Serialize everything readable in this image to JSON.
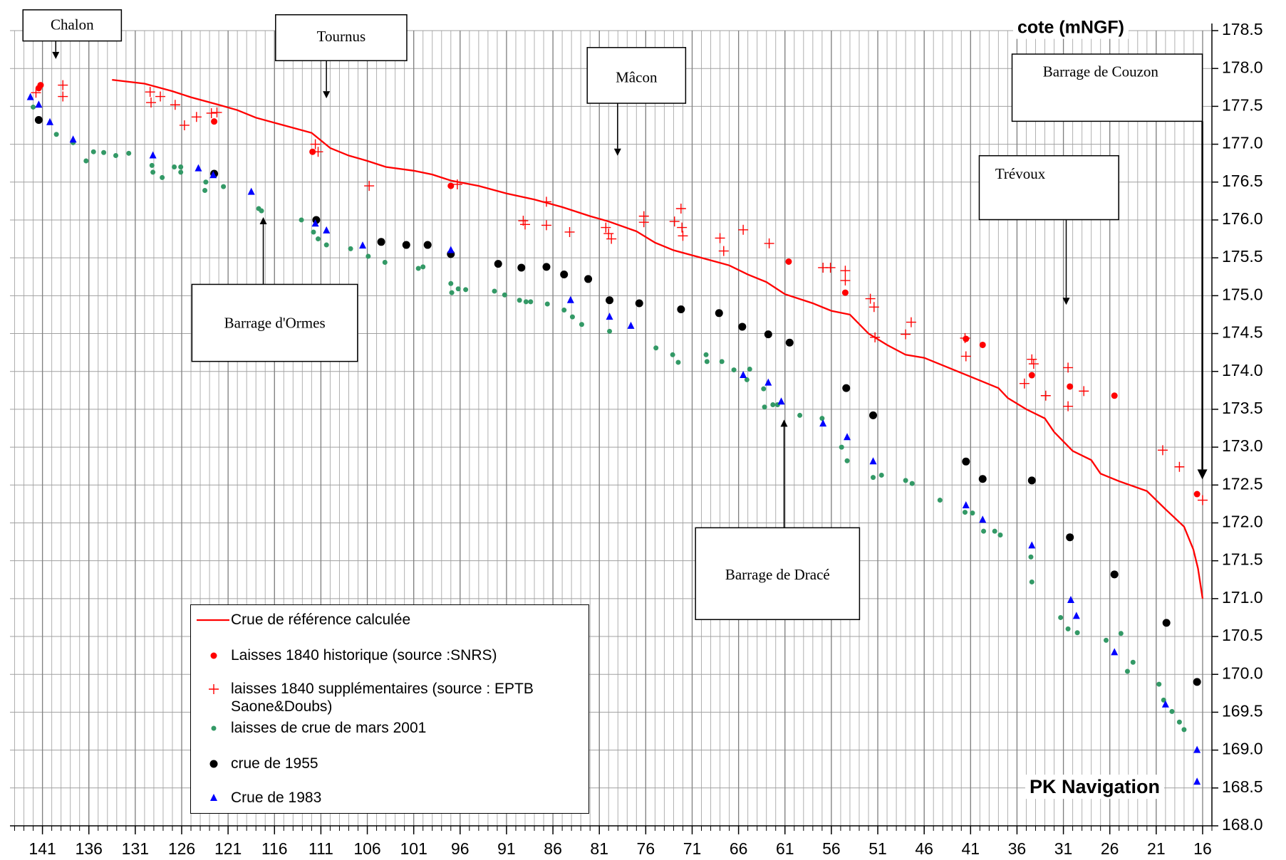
{
  "chart_data": {
    "type": "scatter",
    "y_axis_label": "cote (mNGF)",
    "x_axis_label": "PK Navigation",
    "xlim": [
      144.5,
      15
    ],
    "xticks": [
      141,
      136,
      131,
      126,
      121,
      116,
      111,
      106,
      101,
      96,
      91,
      86,
      81,
      76,
      71,
      66,
      61,
      56,
      51,
      46,
      41,
      36,
      31,
      26,
      21,
      16
    ],
    "x_minor_step": 1,
    "ylim": [
      168,
      178.5
    ],
    "yticks": [
      {
        "value": 168,
        "label": "168.0"
      },
      168.5,
      {
        "value": 169,
        "label": "169.0"
      },
      169.5,
      {
        "value": 170,
        "label": "170.0"
      },
      170.5,
      {
        "value": 171,
        "label": "171.0"
      },
      171.5,
      {
        "value": 172,
        "label": "172.0"
      },
      172.5,
      {
        "value": 173,
        "label": "173.0"
      },
      173.5,
      {
        "value": 174,
        "label": "174.0"
      },
      174.5,
      {
        "value": 175,
        "label": "175.0"
      },
      175.5,
      {
        "value": 176,
        "label": "176.0"
      },
      176.5,
      {
        "value": 177,
        "label": "177.0"
      },
      177.5,
      {
        "value": 178,
        "label": "178.0"
      },
      178.5
    ],
    "grid": true,
    "annotations": [
      "Chalon",
      "Tournus",
      "Mâcon",
      "Barrage de Couzon",
      "Trévoux",
      "Barrage d'Ormes",
      "Barrage de Dracé"
    ],
    "series": [
      {
        "name": "Crue de référence calculée",
        "color": "#ff0000",
        "mode": "line",
        "x": [
          133.5,
          130,
          127,
          125,
          122,
          120,
          118,
          115,
          112,
          111,
          110,
          108,
          106,
          104,
          101,
          99,
          97,
          94,
          91,
          88,
          85,
          82,
          80,
          77,
          75,
          73,
          70,
          67,
          65,
          63,
          61,
          58,
          56,
          54,
          52,
          50,
          48,
          46,
          44,
          42,
          40,
          38,
          37,
          35,
          33,
          32,
          30,
          28,
          27,
          25,
          22,
          20,
          18,
          17,
          16.5,
          16
        ],
        "values": [
          177.85,
          177.8,
          177.7,
          177.62,
          177.52,
          177.45,
          177.35,
          177.25,
          177.15,
          177.05,
          176.95,
          176.85,
          176.78,
          176.7,
          176.65,
          176.6,
          176.52,
          176.45,
          176.35,
          176.27,
          176.17,
          176.05,
          175.98,
          175.85,
          175.7,
          175.6,
          175.5,
          175.4,
          175.28,
          175.18,
          175.02,
          174.9,
          174.8,
          174.75,
          174.5,
          174.35,
          174.22,
          174.18,
          174.08,
          173.98,
          173.88,
          173.78,
          173.65,
          173.5,
          173.38,
          173.2,
          172.95,
          172.83,
          172.65,
          172.55,
          172.42,
          172.18,
          171.95,
          171.65,
          171.4,
          171.0
        ]
      },
      {
        "name": "Laisses 1840 historique (source :SNRS)",
        "color": "#ff0000",
        "mode": "dot",
        "x": [
          141.4,
          141.2,
          122.5,
          111.9,
          97.0,
          60.6,
          54.5,
          41.5,
          39.7,
          34.4,
          30.3,
          25.5,
          16.6
        ],
        "values": [
          177.74,
          177.78,
          177.3,
          176.9,
          176.45,
          175.45,
          175.04,
          174.43,
          174.35,
          173.95,
          173.8,
          173.68,
          172.38
        ]
      },
      {
        "name": "laisses 1840 supplémentaires (source : EPTB Saone&Doubs)",
        "color": "#ff0000",
        "mode": "plus",
        "x": [
          141.7,
          138.8,
          138.8,
          129.4,
          129.3,
          128.3,
          126.7,
          125.7,
          124.4,
          122.8,
          122.2,
          111.6,
          111.3,
          105.8,
          96.3,
          89.2,
          89.0,
          86.7,
          86.7,
          84.2,
          80.3,
          80.0,
          79.7,
          76.2,
          76.2,
          72.9,
          72.2,
          72.1,
          72.0,
          68.0,
          67.6,
          65.5,
          62.7,
          56.9,
          56.1,
          54.5,
          54.5,
          51.8,
          51.4,
          51.3,
          48.0,
          47.4,
          41.6,
          41.5,
          35.2,
          34.4,
          34.2,
          32.9,
          30.5,
          30.5,
          28.8,
          20.3,
          18.5,
          16.0
        ],
        "values": [
          177.68,
          177.78,
          177.63,
          177.69,
          177.55,
          177.63,
          177.52,
          177.25,
          177.36,
          177.41,
          177.42,
          177.0,
          176.9,
          176.45,
          176.47,
          175.99,
          175.94,
          176.24,
          175.93,
          175.84,
          175.9,
          175.82,
          175.75,
          176.05,
          175.97,
          175.98,
          176.15,
          175.9,
          175.79,
          175.76,
          175.59,
          175.87,
          175.69,
          175.37,
          175.37,
          175.33,
          175.2,
          174.96,
          174.85,
          174.45,
          174.49,
          174.65,
          174.44,
          174.2,
          173.84,
          174.16,
          174.1,
          173.68,
          174.05,
          173.54,
          173.74,
          172.96,
          172.74,
          172.3
        ]
      },
      {
        "name": "laisses de crue de mars 2001",
        "color": "#339966",
        "mode": "dot",
        "x": [
          142.0,
          139.5,
          137.7,
          136.3,
          135.5,
          134.4,
          133.1,
          131.7,
          129.2,
          129.1,
          128.1,
          126.8,
          126.1,
          126.1,
          123.4,
          123.5,
          121.5,
          117.7,
          117.4,
          113.1,
          111.8,
          111.3,
          110.4,
          107.8,
          105.9,
          104.1,
          100.5,
          100.0,
          97.0,
          96.9,
          96.2,
          95.4,
          92.3,
          91.2,
          89.6,
          88.9,
          88.4,
          86.6,
          84.8,
          83.9,
          82.9,
          79.9,
          74.9,
          73.1,
          72.5,
          69.5,
          69.4,
          67.8,
          66.5,
          64.8,
          65.1,
          63.3,
          62.3,
          63.2,
          61.8,
          59.4,
          57.0,
          54.9,
          54.3,
          51.5,
          50.6,
          48.0,
          47.3,
          44.3,
          41.6,
          40.8,
          39.6,
          38.4,
          37.8,
          34.5,
          34.4,
          31.3,
          30.5,
          29.5,
          26.4,
          24.8,
          23.5,
          24.1,
          20.7,
          20.2,
          19.3,
          18.5,
          18.0
        ],
        "values": [
          177.49,
          177.13,
          177.02,
          176.78,
          176.9,
          176.89,
          176.85,
          176.88,
          176.72,
          176.63,
          176.56,
          176.7,
          176.7,
          176.63,
          176.5,
          176.39,
          176.44,
          176.15,
          176.12,
          176.0,
          175.84,
          175.75,
          175.67,
          175.62,
          175.52,
          175.44,
          175.36,
          175.38,
          175.16,
          175.04,
          175.09,
          175.08,
          175.06,
          175.01,
          174.94,
          174.92,
          174.92,
          174.89,
          174.81,
          174.72,
          174.62,
          174.53,
          174.31,
          174.22,
          174.12,
          174.22,
          174.13,
          174.13,
          174.02,
          174.03,
          173.89,
          173.77,
          173.56,
          173.53,
          173.56,
          173.42,
          173.38,
          173.0,
          172.82,
          172.6,
          172.63,
          172.56,
          172.52,
          172.3,
          172.14,
          172.13,
          171.89,
          171.89,
          171.84,
          171.55,
          171.22,
          170.75,
          170.6,
          170.55,
          170.45,
          170.54,
          170.16,
          170.04,
          169.87,
          169.66,
          169.51,
          169.37,
          169.27
        ]
      },
      {
        "name": "crue de 1955",
        "color": "#000000",
        "mode": "dot",
        "x": [
          141.4,
          122.5,
          111.5,
          104.5,
          101.8,
          99.5,
          97.0,
          91.9,
          89.4,
          86.7,
          84.8,
          82.2,
          79.9,
          76.7,
          72.2,
          68.1,
          65.6,
          62.8,
          60.5,
          54.4,
          51.5,
          41.5,
          39.7,
          34.4,
          30.3,
          25.5,
          19.9,
          16.6
        ],
        "values": [
          177.32,
          176.61,
          176.0,
          175.71,
          175.67,
          175.67,
          175.55,
          175.42,
          175.37,
          175.38,
          175.28,
          175.22,
          174.94,
          174.9,
          174.82,
          174.77,
          174.59,
          174.49,
          174.38,
          173.78,
          173.42,
          172.81,
          172.58,
          172.56,
          171.81,
          171.32,
          170.68,
          169.9
        ]
      },
      {
        "name": "Crue de 1983",
        "color": "#0000ff",
        "mode": "triangle",
        "x": [
          142.3,
          141.4,
          140.2,
          137.7,
          129.1,
          124.2,
          122.6,
          118.5,
          111.6,
          110.4,
          106.5,
          97.0,
          84.1,
          79.9,
          77.6,
          65.5,
          62.8,
          61.4,
          56.9,
          54.3,
          51.5,
          41.5,
          39.7,
          34.4,
          30.2,
          29.6,
          25.5,
          20.0,
          16.6,
          16.6
        ],
        "values": [
          177.62,
          177.52,
          177.29,
          177.06,
          176.85,
          176.68,
          176.59,
          176.37,
          175.95,
          175.86,
          175.66,
          175.6,
          174.94,
          174.72,
          174.6,
          173.95,
          173.85,
          173.6,
          173.31,
          173.13,
          172.81,
          172.23,
          172.04,
          171.7,
          170.98,
          170.77,
          170.29,
          169.6,
          169.0,
          168.58
        ]
      }
    ]
  }
}
